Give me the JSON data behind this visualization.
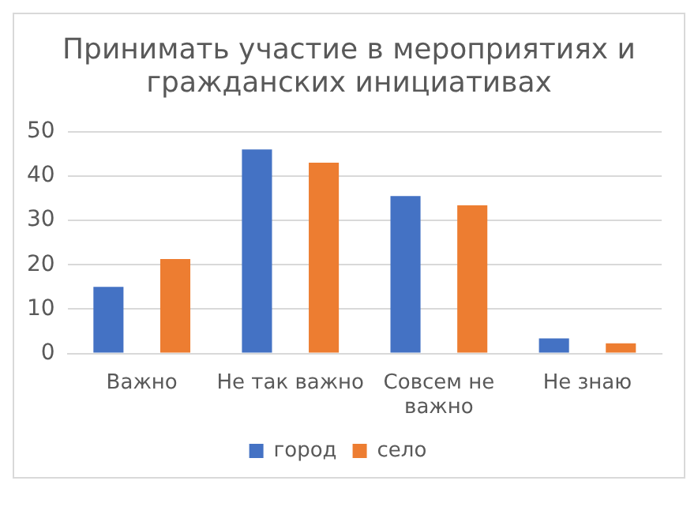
{
  "chart_data": {
    "type": "bar",
    "title": "Принимать участие в мероприятиях и гражданских инициативах",
    "categories": [
      "Важно",
      "Не так важно",
      "Совсем не важно",
      "Не знаю"
    ],
    "series": [
      {
        "name": "город",
        "color": "#4472c4",
        "values": [
          15,
          46,
          35.5,
          3.4
        ]
      },
      {
        "name": "село",
        "color": "#ed7d31",
        "values": [
          21.3,
          43,
          33.4,
          2.3
        ]
      }
    ],
    "ylim": [
      0,
      50
    ],
    "yticks": [
      0,
      10,
      20,
      30,
      40,
      50
    ],
    "grid": "y",
    "legend": "bottom"
  }
}
